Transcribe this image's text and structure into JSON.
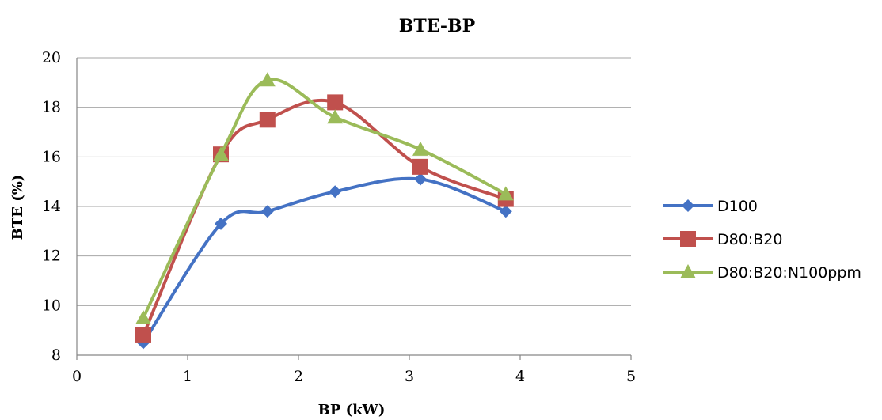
{
  "chart_data": {
    "type": "line",
    "title": "BTE-BP",
    "xlabel": "BP (kW)",
    "ylabel": "BTE (%)",
    "xlim": [
      0,
      5
    ],
    "ylim": [
      8,
      20
    ],
    "xticks": [
      "0",
      "1",
      "2",
      "3",
      "4",
      "5"
    ],
    "yticks": [
      "8",
      "10",
      "12",
      "14",
      "16",
      "18",
      "20"
    ],
    "grid": "horizontal",
    "legend_position": "right",
    "smooth": true,
    "series": [
      {
        "name": "D100",
        "color": "#4472c4",
        "marker": "diamond",
        "points": [
          [
            0.6,
            8.5
          ],
          [
            1.3,
            13.3
          ],
          [
            1.72,
            13.8
          ],
          [
            2.33,
            14.6
          ],
          [
            3.1,
            15.1
          ],
          [
            3.87,
            13.8
          ]
        ]
      },
      {
        "name": "D80:B20",
        "color": "#c0504d",
        "marker": "square",
        "points": [
          [
            0.6,
            8.8
          ],
          [
            1.3,
            16.1
          ],
          [
            1.72,
            17.5
          ],
          [
            2.33,
            18.2
          ],
          [
            3.1,
            15.6
          ],
          [
            3.87,
            14.3
          ]
        ]
      },
      {
        "name": "D80:B20:N100ppm",
        "color": "#9bbb59",
        "marker": "triangle",
        "points": [
          [
            0.6,
            9.5
          ],
          [
            1.3,
            16.1
          ],
          [
            1.72,
            19.1
          ],
          [
            2.33,
            17.6
          ],
          [
            3.1,
            16.3
          ],
          [
            3.87,
            14.5
          ]
        ]
      }
    ]
  }
}
